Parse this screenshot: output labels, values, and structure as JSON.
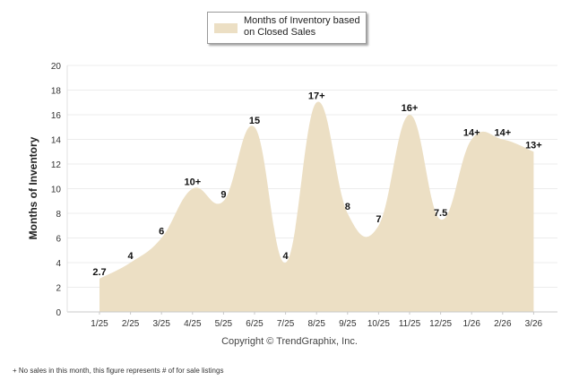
{
  "chart_data": {
    "type": "area",
    "title": "",
    "ylabel": "Months of Inventory",
    "xlabel": "",
    "ylim": [
      0,
      20
    ],
    "yticks": [
      0,
      2,
      4,
      6,
      8,
      10,
      12,
      14,
      16,
      18,
      20
    ],
    "grid": true,
    "categories": [
      "1/25",
      "2/25",
      "3/25",
      "4/25",
      "5/25",
      "6/25",
      "7/25",
      "8/25",
      "9/25",
      "10/25",
      "11/25",
      "12/25",
      "1/26",
      "2/26",
      "3/26"
    ],
    "series": [
      {
        "name": "Months of Inventory based on Closed Sales",
        "values": [
          2.7,
          4,
          6,
          10,
          9,
          15,
          4,
          17,
          8,
          7,
          16,
          7.5,
          14,
          14,
          13
        ],
        "labels": [
          "2.7",
          "4",
          "6",
          "10+",
          "9",
          "15",
          "4",
          "17+",
          "8",
          "7",
          "16+",
          "7.5",
          "14+",
          "14+",
          "13+"
        ],
        "color": "#ecdfc4"
      }
    ]
  },
  "legend": {
    "label": "Months of Inventory based on Closed Sales",
    "color": "#ecdfc4"
  },
  "copyright": "Copyright © TrendGraphix, Inc.",
  "footnote": "+  No sales in this month, this figure represents # of for sale listings"
}
